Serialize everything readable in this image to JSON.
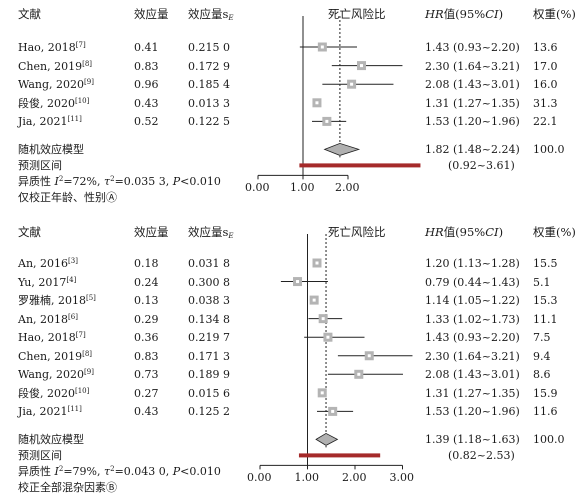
{
  "chart_data": [
    {
      "type": "forest",
      "header": {
        "study": "文献",
        "effect": "效应量",
        "se": "效应量s",
        "se_sub": "E",
        "plot_title": "死亡风险比",
        "hr": "HR值(95%CI)",
        "weight": "权重(%)"
      },
      "rows": [
        {
          "study": "Hao, 2018",
          "ref": "[7]",
          "effect": "0.41",
          "se": "0.215 0",
          "hr": 1.43,
          "lo": 0.93,
          "hi": 2.2,
          "ci_text": "1.43 (0.93~2.20)",
          "weight": "13.6"
        },
        {
          "study": "Chen, 2019",
          "ref": "[8]",
          "effect": "0.83",
          "se": "0.172 9",
          "hr": 2.3,
          "lo": 1.64,
          "hi": 3.21,
          "ci_text": "2.30 (1.64~3.21)",
          "weight": "17.0"
        },
        {
          "study": "Wang, 2020",
          "ref": "[9]",
          "effect": "0.96",
          "se": "0.185 4",
          "hr": 2.08,
          "lo": 1.43,
          "hi": 3.01,
          "ci_text": "2.08 (1.43~3.01)",
          "weight": "16.0"
        },
        {
          "study": "段俊, 2020",
          "ref": "[10]",
          "effect": "0.43",
          "se": "0.013 3",
          "hr": 1.31,
          "lo": 1.27,
          "hi": 1.35,
          "ci_text": "1.31 (1.27~1.35)",
          "weight": "31.3"
        },
        {
          "study": "Jia, 2021",
          "ref": "[11]",
          "effect": "0.52",
          "se": "0.122 5",
          "hr": 1.53,
          "lo": 1.2,
          "hi": 1.96,
          "ci_text": "1.53 (1.20~1.96)",
          "weight": "22.1"
        }
      ],
      "summary": {
        "label": "随机效应模型",
        "hr": 1.82,
        "lo": 1.48,
        "hi": 2.24,
        "ci_text": "1.82 (1.48~2.24)",
        "weight": "100.0"
      },
      "prediction": {
        "label": "预测区间",
        "lo": 0.92,
        "hi": 3.61,
        "ci_text": "(0.92~3.61)"
      },
      "heterogeneity": "异质性 I²=72%, τ²=0.035 3, P<0.010",
      "note": "仅校正年龄、性别Ⓐ",
      "x_ticks": [
        "0.00",
        "1.00",
        "2.00"
      ],
      "xlim": [
        0,
        2
      ],
      "reference_line": 1.0,
      "summary_dotted_line": 1.82
    },
    {
      "type": "forest",
      "header": {
        "study": "文献",
        "effect": "效应量",
        "se": "效应量s",
        "se_sub": "E",
        "plot_title": "死亡风险比",
        "hr": "HR值(95%CI)",
        "weight": "权重(%)"
      },
      "rows": [
        {
          "study": "An, 2016",
          "ref": "[3]",
          "effect": "0.18",
          "se": "0.031 8",
          "hr": 1.2,
          "lo": 1.13,
          "hi": 1.28,
          "ci_text": "1.20 (1.13~1.28)",
          "weight": "15.5"
        },
        {
          "study": "Yu, 2017",
          "ref": "[4]",
          "effect": "0.24",
          "se": "0.300 8",
          "hr": 0.79,
          "lo": 0.44,
          "hi": 1.43,
          "ci_text": "0.79 (0.44~1.43)",
          "weight": "5.1"
        },
        {
          "study": "罗雅楠, 2018",
          "ref": "[5]",
          "effect": "0.13",
          "se": "0.038 3",
          "hr": 1.14,
          "lo": 1.05,
          "hi": 1.22,
          "ci_text": "1.14 (1.05~1.22)",
          "weight": "15.3"
        },
        {
          "study": "An, 2018",
          "ref": "[6]",
          "effect": "0.29",
          "se": "0.134 8",
          "hr": 1.33,
          "lo": 1.02,
          "hi": 1.73,
          "ci_text": "1.33 (1.02~1.73)",
          "weight": "11.1"
        },
        {
          "study": "Hao, 2018",
          "ref": "[7]",
          "effect": "0.36",
          "se": "0.219 7",
          "hr": 1.43,
          "lo": 0.93,
          "hi": 2.2,
          "ci_text": "1.43 (0.93~2.20)",
          "weight": "7.5"
        },
        {
          "study": "Chen, 2019",
          "ref": "[8]",
          "effect": "0.83",
          "se": "0.171 3",
          "hr": 2.3,
          "lo": 1.64,
          "hi": 3.21,
          "ci_text": "2.30 (1.64~3.21)",
          "weight": "9.4"
        },
        {
          "study": "Wang, 2020",
          "ref": "[9]",
          "effect": "0.73",
          "se": "0.189 9",
          "hr": 2.08,
          "lo": 1.43,
          "hi": 3.01,
          "ci_text": "2.08 (1.43~3.01)",
          "weight": "8.6"
        },
        {
          "study": "段俊, 2020",
          "ref": "[10]",
          "effect": "0.27",
          "se": "0.015 6",
          "hr": 1.31,
          "lo": 1.27,
          "hi": 1.35,
          "ci_text": "1.31 (1.27~1.35)",
          "weight": "15.9"
        },
        {
          "study": "Jia, 2021",
          "ref": "[11]",
          "effect": "0.43",
          "se": "0.125 2",
          "hr": 1.53,
          "lo": 1.2,
          "hi": 1.96,
          "ci_text": "1.53 (1.20~1.96)",
          "weight": "11.6"
        }
      ],
      "summary": {
        "label": "随机效应模型",
        "hr": 1.39,
        "lo": 1.18,
        "hi": 1.63,
        "ci_text": "1.39 (1.18~1.63)",
        "weight": "100.0"
      },
      "prediction": {
        "label": "预测区间",
        "lo": 0.82,
        "hi": 2.53,
        "ci_text": "(0.82~2.53)"
      },
      "heterogeneity": "异质性 I²=79%, τ²=0.043 0, P<0.010",
      "note": "校正全部混杂因素Ⓑ",
      "x_ticks": [
        "0.00",
        "1.00",
        "2.00",
        "3.00"
      ],
      "xlim": [
        0,
        3
      ],
      "reference_line": 1.0,
      "summary_dotted_line": 1.39
    }
  ],
  "colors": {
    "text": "#1a1a1a",
    "axis": "#222222",
    "ci_line": "#222222",
    "square": "#b4b4b4",
    "diamond_fill": "#b0b0b0",
    "prediction_bar": "#a52a2a"
  }
}
